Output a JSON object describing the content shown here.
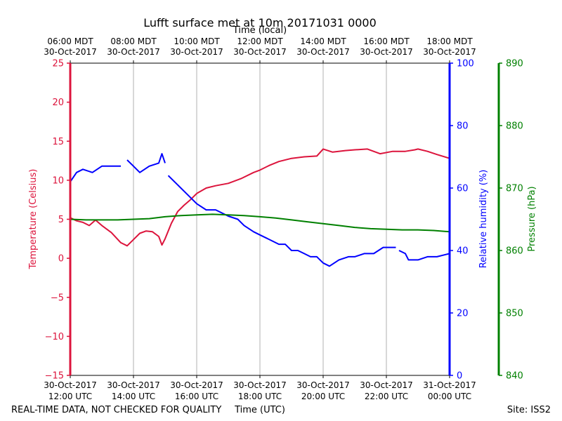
{
  "chart_data": {
    "type": "line",
    "title": "Lufft surface met at 10m 20171031 0000",
    "top_axis_label": "Time (local)",
    "top_ticks": [
      {
        "line1": "06:00 MDT",
        "line2": "30-Oct-2017",
        "utc_hour": 12
      },
      {
        "line1": "08:00 MDT",
        "line2": "30-Oct-2017",
        "utc_hour": 14
      },
      {
        "line1": "10:00 MDT",
        "line2": "30-Oct-2017",
        "utc_hour": 16
      },
      {
        "line1": "12:00 MDT",
        "line2": "30-Oct-2017",
        "utc_hour": 18
      },
      {
        "line1": "14:00 MDT",
        "line2": "30-Oct-2017",
        "utc_hour": 20
      },
      {
        "line1": "16:00 MDT",
        "line2": "30-Oct-2017",
        "utc_hour": 22
      },
      {
        "line1": "18:00 MDT",
        "line2": "30-Oct-2017",
        "utc_hour": 24
      }
    ],
    "bottom_axis_label": "Time (UTC)",
    "bottom_ticks": [
      {
        "line1": "30-Oct-2017",
        "line2": "12:00 UTC",
        "utc_hour": 12
      },
      {
        "line1": "30-Oct-2017",
        "line2": "14:00 UTC",
        "utc_hour": 14
      },
      {
        "line1": "30-Oct-2017",
        "line2": "16:00 UTC",
        "utc_hour": 16
      },
      {
        "line1": "30-Oct-2017",
        "line2": "18:00 UTC",
        "utc_hour": 18
      },
      {
        "line1": "30-Oct-2017",
        "line2": "20:00 UTC",
        "utc_hour": 20
      },
      {
        "line1": "30-Oct-2017",
        "line2": "22:00 UTC",
        "utc_hour": 22
      },
      {
        "line1": "31-Oct-2017",
        "line2": "00:00 UTC",
        "utc_hour": 24
      }
    ],
    "xlim_utc_hour": [
      12,
      24
    ],
    "vertical_grid": true,
    "axes": {
      "temperature": {
        "label": "Temperature (Celsius)",
        "color": "#dc143c",
        "lim": [
          -15,
          25
        ],
        "ticks": [
          "25",
          "20",
          "15",
          "10",
          "5",
          "0",
          "−5",
          "−10",
          "−15"
        ],
        "tick_values": [
          25,
          20,
          15,
          10,
          5,
          0,
          -5,
          -10,
          -15
        ]
      },
      "humidity": {
        "label": "Relative humidity (%)",
        "color": "#0000ff",
        "lim": [
          0,
          100
        ],
        "ticks": [
          "100",
          "80",
          "60",
          "40",
          "20",
          "0"
        ],
        "tick_values": [
          100,
          80,
          60,
          40,
          20,
          0
        ]
      },
      "pressure": {
        "label": "Pressure (hPa)",
        "color": "#008000",
        "lim": [
          840,
          890
        ],
        "ticks": [
          "890",
          "880",
          "870",
          "860",
          "850",
          "840"
        ],
        "tick_values": [
          890,
          880,
          870,
          860,
          850,
          840
        ]
      }
    },
    "series": [
      {
        "key": "temperature",
        "axis": "temperature",
        "color": "#dc143c",
        "segments": [
          [
            [
              12.0,
              5.2
            ],
            [
              12.2,
              4.8
            ],
            [
              12.4,
              4.6
            ],
            [
              12.6,
              4.2
            ],
            [
              12.8,
              4.9
            ],
            [
              13.0,
              4.2
            ],
            [
              13.3,
              3.3
            ],
            [
              13.6,
              2.0
            ],
            [
              13.8,
              1.6
            ],
            [
              14.0,
              2.4
            ],
            [
              14.2,
              3.2
            ],
            [
              14.4,
              3.5
            ],
            [
              14.6,
              3.4
            ],
            [
              14.8,
              2.8
            ],
            [
              14.9,
              1.7
            ],
            [
              15.0,
              2.5
            ],
            [
              15.2,
              4.5
            ],
            [
              15.4,
              6.0
            ],
            [
              15.6,
              6.8
            ],
            [
              15.8,
              7.5
            ],
            [
              16.0,
              8.3
            ],
            [
              16.3,
              9.0
            ],
            [
              16.6,
              9.3
            ],
            [
              17.0,
              9.6
            ],
            [
              17.4,
              10.2
            ],
            [
              17.8,
              11.0
            ],
            [
              18.0,
              11.3
            ],
            [
              18.3,
              11.9
            ],
            [
              18.6,
              12.4
            ],
            [
              19.0,
              12.8
            ],
            [
              19.4,
              13.0
            ],
            [
              19.8,
              13.1
            ],
            [
              20.0,
              14.0
            ],
            [
              20.3,
              13.6
            ],
            [
              20.7,
              13.8
            ],
            [
              21.0,
              13.9
            ],
            [
              21.4,
              14.0
            ],
            [
              21.8,
              13.4
            ],
            [
              22.2,
              13.7
            ],
            [
              22.6,
              13.7
            ],
            [
              22.9,
              13.9
            ],
            [
              23.0,
              14.0
            ],
            [
              23.3,
              13.7
            ],
            [
              23.6,
              13.3
            ],
            [
              24.0,
              12.8
            ]
          ]
        ]
      },
      {
        "key": "humidity",
        "axis": "humidity",
        "color": "#0000ff",
        "segments": [
          [
            [
              12.0,
              62
            ],
            [
              12.2,
              65
            ],
            [
              12.4,
              66
            ],
            [
              12.7,
              65
            ],
            [
              13.0,
              67
            ],
            [
              13.3,
              67
            ],
            [
              13.6,
              67
            ]
          ],
          [
            [
              13.8,
              69
            ],
            [
              14.0,
              67
            ],
            [
              14.2,
              65
            ],
            [
              14.5,
              67
            ],
            [
              14.8,
              68
            ],
            [
              14.9,
              71
            ],
            [
              15.0,
              68
            ]
          ],
          [
            [
              15.1,
              64
            ],
            [
              15.4,
              61
            ],
            [
              15.7,
              58
            ],
            [
              16.0,
              55
            ],
            [
              16.3,
              53
            ],
            [
              16.6,
              53
            ],
            [
              17.0,
              51
            ],
            [
              17.3,
              50
            ],
            [
              17.5,
              48
            ],
            [
              17.8,
              46
            ],
            [
              18.0,
              45
            ],
            [
              18.2,
              44
            ],
            [
              18.4,
              43
            ],
            [
              18.6,
              42
            ],
            [
              18.8,
              42
            ],
            [
              19.0,
              40
            ],
            [
              19.2,
              40
            ],
            [
              19.4,
              39
            ],
            [
              19.6,
              38
            ],
            [
              19.8,
              38
            ],
            [
              20.0,
              36
            ],
            [
              20.2,
              35
            ],
            [
              20.5,
              37
            ],
            [
              20.8,
              38
            ],
            [
              21.0,
              38
            ],
            [
              21.3,
              39
            ],
            [
              21.6,
              39
            ],
            [
              21.9,
              41
            ],
            [
              22.0,
              41
            ],
            [
              22.3,
              41
            ]
          ],
          [
            [
              22.4,
              40
            ],
            [
              22.6,
              39
            ],
            [
              22.7,
              37
            ],
            [
              23.0,
              37
            ],
            [
              23.3,
              38
            ],
            [
              23.6,
              38
            ],
            [
              24.0,
              39
            ]
          ]
        ]
      },
      {
        "key": "pressure",
        "axis": "pressure",
        "color": "#008000",
        "segments": [
          [
            [
              12.0,
              865.0
            ],
            [
              12.5,
              864.9
            ],
            [
              13.0,
              864.9
            ],
            [
              13.5,
              864.9
            ],
            [
              14.0,
              865.0
            ],
            [
              14.5,
              865.1
            ],
            [
              15.0,
              865.4
            ],
            [
              15.5,
              865.6
            ],
            [
              16.0,
              865.7
            ],
            [
              16.5,
              865.8
            ],
            [
              17.0,
              865.7
            ],
            [
              17.5,
              865.6
            ],
            [
              18.0,
              865.4
            ],
            [
              18.5,
              865.2
            ],
            [
              19.0,
              864.9
            ],
            [
              19.5,
              864.6
            ],
            [
              20.0,
              864.3
            ],
            [
              20.5,
              864.0
            ],
            [
              21.0,
              863.7
            ],
            [
              21.5,
              863.5
            ],
            [
              22.0,
              863.4
            ],
            [
              22.5,
              863.3
            ],
            [
              23.0,
              863.3
            ],
            [
              23.5,
              863.2
            ],
            [
              24.0,
              863.0
            ]
          ]
        ]
      }
    ]
  },
  "footer": {
    "left": "REAL-TIME DATA, NOT CHECKED FOR QUALITY",
    "site": "Site: ISS2"
  }
}
